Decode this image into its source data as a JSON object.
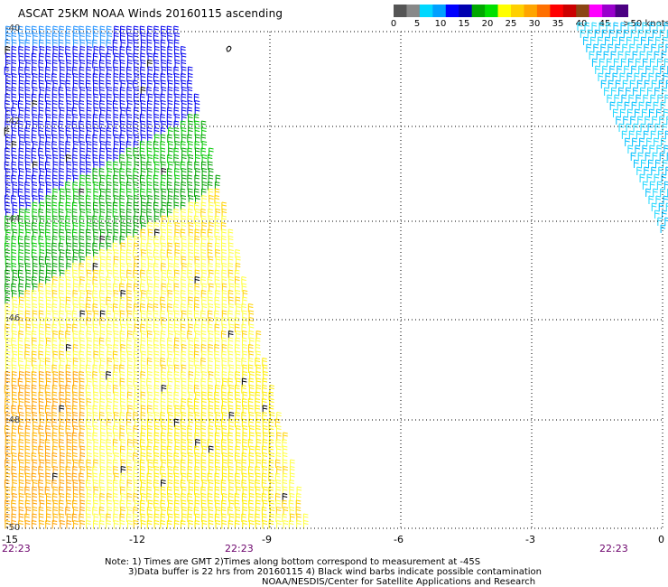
{
  "title": "ASCAT 25KM NOAA Winds 20160115 ascending",
  "legend": {
    "labels": [
      "0",
      "5",
      "10",
      "15",
      "20",
      "25",
      "30",
      "35",
      "40",
      "45",
      ">50 knots"
    ],
    "colors": [
      "#555555",
      "#888888",
      "#00d8ff",
      "#00a0ff",
      "#0000ff",
      "#0000b0",
      "#00a800",
      "#00e000",
      "#ffff00",
      "#ffd000",
      "#ffa500",
      "#ff7000",
      "#ff0000",
      "#cc0000",
      "#8b4513",
      "#ff00ff",
      "#9900cc",
      "#4b0082"
    ]
  },
  "axes": {
    "lon_labels": [
      "-15",
      "-12",
      "-9",
      "-6",
      "-3",
      "0"
    ],
    "lat_labels": [
      "-40",
      "-42",
      "-44",
      "-46",
      "-48",
      "-50"
    ]
  },
  "times": [
    "22:23",
    "22:23",
    "22:23"
  ],
  "notes": {
    "line1": "Note: 1) Times are GMT 2)Times along bottom correspond to measurement at -45S",
    "line2": "3)Data buffer is 22 hrs from 20160115 4) Black wind barbs indicate possible contamination",
    "line3": "NOAA/NESDIS/Center for Satellite Applications and Research"
  }
}
